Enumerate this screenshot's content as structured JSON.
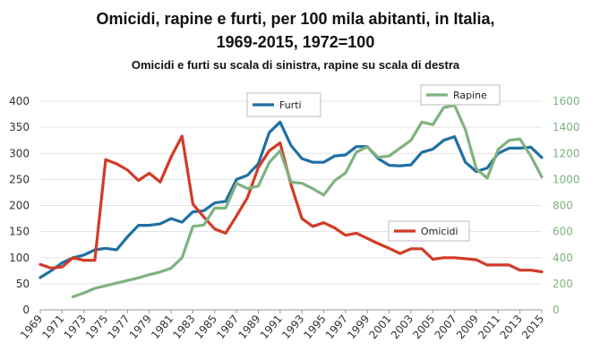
{
  "chart_data": {
    "type": "line",
    "title_line1": "Omicidi, rapine e furti, per 100 mila abitanti, in Italia,",
    "title_line2": "1969-2015, 1972=100",
    "subtitle": "Omicidi e furti su scala di sinistra, rapine su scala di destra",
    "x": [
      1969,
      1970,
      1971,
      1972,
      1973,
      1974,
      1975,
      1976,
      1977,
      1978,
      1979,
      1980,
      1981,
      1982,
      1983,
      1984,
      1985,
      1986,
      1987,
      1988,
      1989,
      1990,
      1991,
      1992,
      1993,
      1994,
      1995,
      1996,
      1997,
      1998,
      1999,
      2000,
      2001,
      2002,
      2003,
      2004,
      2005,
      2006,
      2007,
      2008,
      2009,
      2010,
      2011,
      2012,
      2013,
      2014,
      2015
    ],
    "x_tick_labels": [
      "1969",
      "1971",
      "1973",
      "1975",
      "1977",
      "1979",
      "1981",
      "1983",
      "1985",
      "1987",
      "1989",
      "1991",
      "1993",
      "1995",
      "1997",
      "1999",
      "2001",
      "2003",
      "2005",
      "2007",
      "2009",
      "2011",
      "2013",
      "2015"
    ],
    "left_axis": {
      "ylim": [
        0,
        400
      ],
      "ticks": [
        "0",
        "50",
        "100",
        "150",
        "200",
        "250",
        "300",
        "350",
        "400"
      ]
    },
    "right_axis": {
      "ylim": [
        0,
        1600
      ],
      "ticks": [
        "0",
        "200",
        "400",
        "600",
        "800",
        "1000",
        "1200",
        "1400",
        "1600"
      ]
    },
    "grid": "horizontal",
    "series": [
      {
        "name": "Furti",
        "axis": "left",
        "color": "#1f6fa3",
        "values": [
          62,
          75,
          90,
          100,
          105,
          115,
          118,
          115,
          140,
          162,
          162,
          165,
          175,
          168,
          188,
          190,
          205,
          208,
          250,
          258,
          280,
          340,
          360,
          315,
          290,
          283,
          283,
          295,
          297,
          313,
          313,
          290,
          277,
          276,
          278,
          302,
          308,
          325,
          332,
          283,
          265,
          272,
          300,
          310,
          310,
          312,
          292
        ]
      },
      {
        "name": "Omicidi",
        "axis": "left",
        "color": "#d23b27",
        "values": [
          87,
          80,
          82,
          100,
          95,
          95,
          288,
          280,
          268,
          248,
          262,
          245,
          293,
          333,
          203,
          178,
          155,
          147,
          180,
          215,
          273,
          305,
          320,
          240,
          175,
          160,
          167,
          157,
          143,
          147,
          137,
          127,
          118,
          108,
          117,
          117,
          97,
          100,
          100,
          98,
          96,
          86,
          86,
          86,
          76,
          76,
          73
        ]
      },
      {
        "name": "Rapine",
        "axis": "right",
        "color": "#7fb27f",
        "values": [
          null,
          null,
          null,
          100,
          130,
          165,
          185,
          205,
          225,
          245,
          270,
          290,
          320,
          400,
          640,
          650,
          780,
          780,
          970,
          930,
          950,
          1130,
          1220,
          980,
          970,
          930,
          880,
          990,
          1050,
          1210,
          1250,
          1170,
          1180,
          1240,
          1300,
          1440,
          1420,
          1550,
          1570,
          1380,
          1080,
          1010,
          1230,
          1300,
          1310,
          1180,
          1020
        ]
      }
    ],
    "legend": [
      {
        "label": "Furti",
        "series": "Furti",
        "position": "top-center"
      },
      {
        "label": "Rapine",
        "series": "Rapine",
        "position": "top-right"
      },
      {
        "label": "Omicidi",
        "series": "Omicidi",
        "position": "center-right"
      }
    ]
  }
}
